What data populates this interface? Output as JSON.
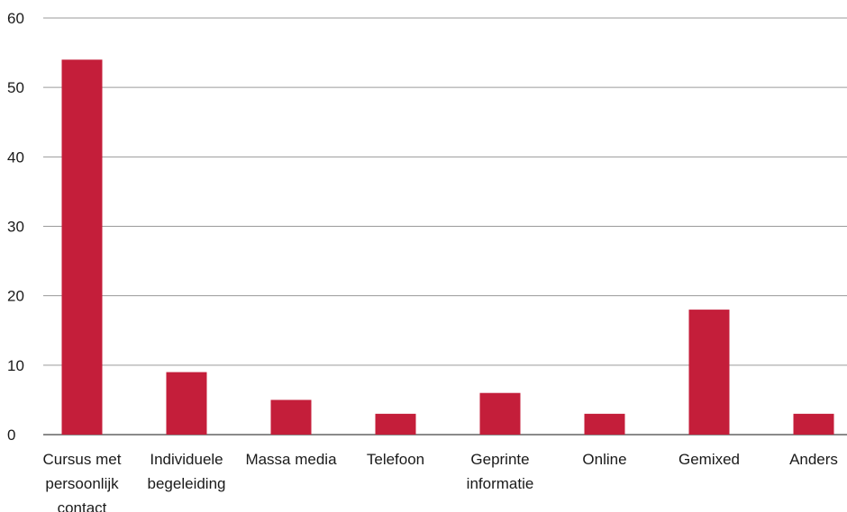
{
  "chart_data": {
    "type": "bar",
    "categories": [
      [
        "Cursus met",
        "persoonlijk",
        "contact"
      ],
      [
        "Individuele",
        "begeleiding"
      ],
      [
        "Massa media"
      ],
      [
        "Telefoon"
      ],
      [
        "Geprinte",
        "informatie"
      ],
      [
        "Online"
      ],
      [
        "Gemixed"
      ],
      [
        "Anders"
      ]
    ],
    "values": [
      54,
      9,
      5,
      3,
      6,
      3,
      18,
      3
    ],
    "ylim": [
      0,
      60
    ],
    "yticks": [
      0,
      10,
      20,
      30,
      40,
      50,
      60
    ],
    "bar_color": "#c41e3a",
    "grid": true,
    "grid_color": "#9a9a9a",
    "legend": "none"
  }
}
